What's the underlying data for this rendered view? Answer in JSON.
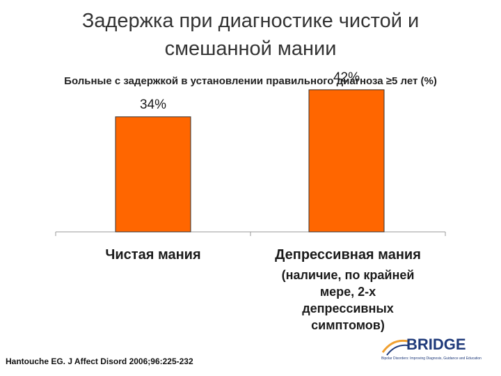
{
  "title_line1": "Задержка при диагностике чистой и",
  "title_line2": "смешанной мании",
  "chart_data": {
    "type": "bar",
    "title": "Больные с задержкой в установлении правильного диагноза ≥5 лет (%)",
    "categories": [
      "Чистая мания",
      "Депрессивная мания"
    ],
    "category_notes": [
      "",
      "(наличие, по крайней мере, 2-х депрессивных симптомов)"
    ],
    "values": [
      34,
      42
    ],
    "value_labels": [
      "34%",
      "42%"
    ],
    "ylim": [
      0,
      50
    ],
    "bar_color": "#ff6600",
    "bar_edge_color": "#333333",
    "grid": false,
    "legend": "none"
  },
  "cat2_lines": [
    "(наличие, по крайней",
    "мере, 2-х",
    "депрессивных",
    "симптомов)"
  ],
  "citation": "Hantouche EG. J Affect Disord 2006;96:225-232",
  "logo": {
    "text": "BRIDGE",
    "tagline": "Bipolar Disorders: Improving Diagnosis, Guidance and Education",
    "color": "#1f3a7a",
    "accent": "#f0a030"
  }
}
